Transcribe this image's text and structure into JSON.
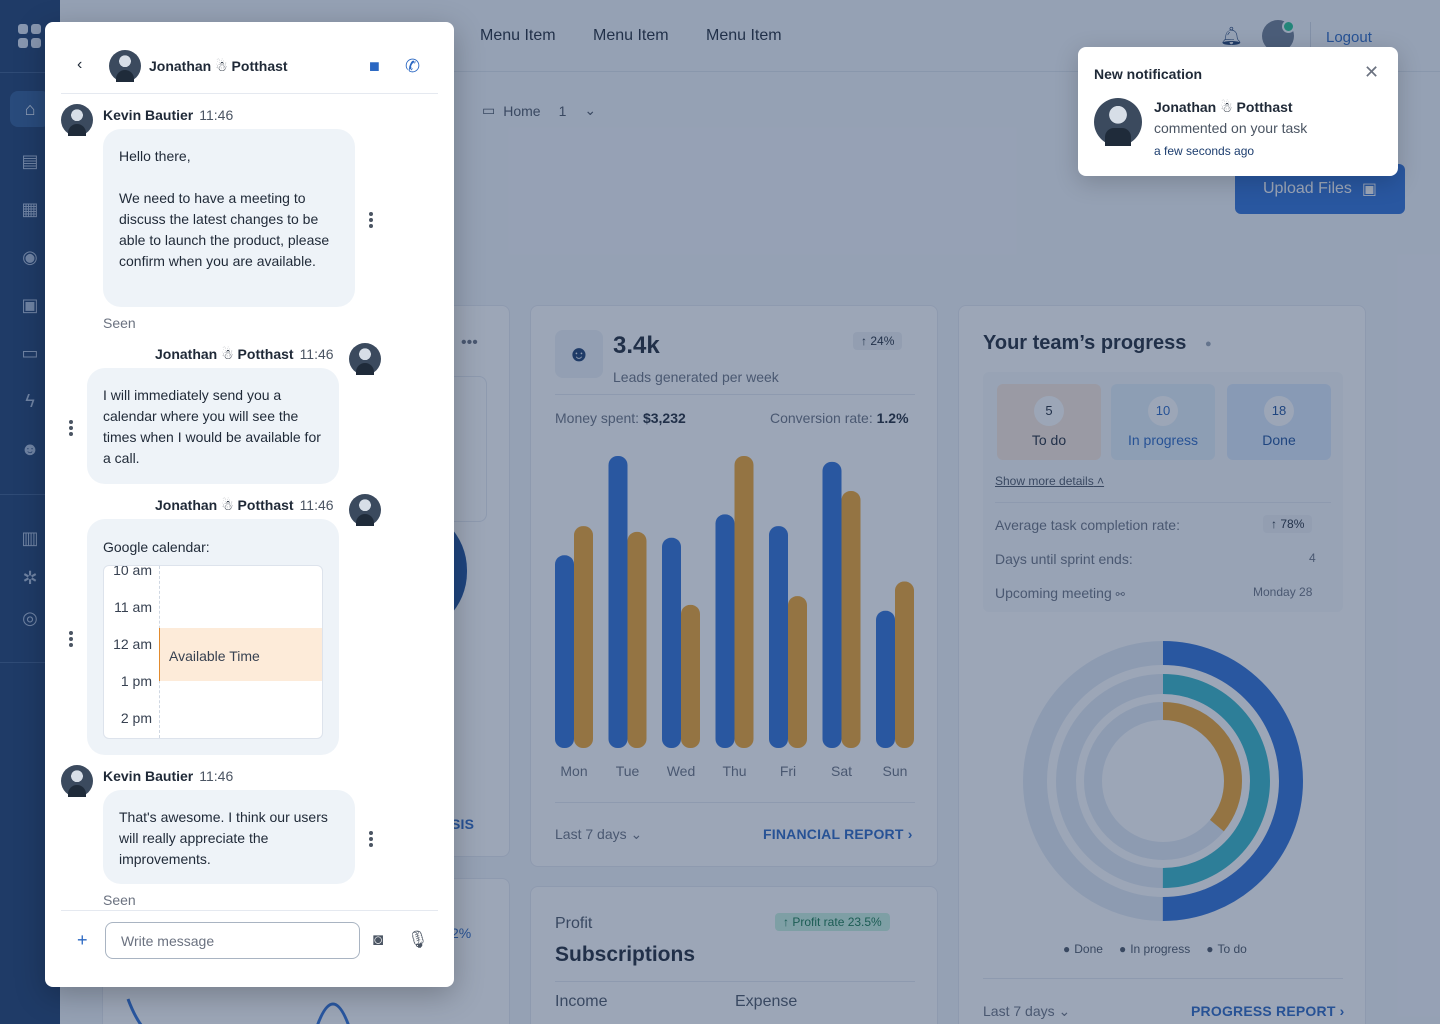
{
  "nav": {
    "menu_items": [
      "Menu Item",
      "Menu Item",
      "Menu Item"
    ],
    "logout": "Logout"
  },
  "breadcrumb": {
    "home": "Home",
    "count": "1"
  },
  "upload": {
    "label": "Upload Files"
  },
  "leads_card": {
    "value": "3.4k",
    "caption": "Leads generated per week",
    "badge": "24%",
    "money_label": "Money spent:",
    "money_value": "$3,232",
    "conversion_label": "Conversion rate:",
    "conversion_value": "1.2%",
    "period": "Last 7 days",
    "report_link": "FINANCIAL REPORT"
  },
  "chart_data": {
    "type": "bar",
    "categories": [
      "Mon",
      "Tue",
      "Wed",
      "Thu",
      "Fri",
      "Sat",
      "Sun"
    ],
    "series": [
      {
        "values": [
          66,
          100,
          72,
          80,
          76,
          98,
          47
        ]
      },
      {
        "values": [
          76,
          74,
          49,
          100,
          52,
          88,
          57
        ]
      }
    ],
    "ylim": [
      0,
      100
    ],
    "colors": [
      "#2f6fd6",
      "#f0a52c"
    ]
  },
  "team_card": {
    "title": "Your team’s progress",
    "tiles": [
      {
        "num": "5",
        "label": "To do"
      },
      {
        "num": "10",
        "label": "In progress"
      },
      {
        "num": "18",
        "label": "Done"
      }
    ],
    "show_more": "Show more details",
    "rows": [
      {
        "label": "Average task completion rate:",
        "value": "78%"
      },
      {
        "label": "Days until sprint ends:",
        "value": "4"
      },
      {
        "label": "Upcoming meeting",
        "value": "Monday 28"
      }
    ],
    "legend": [
      "Done",
      "In progress",
      "To do"
    ],
    "period": "Last 7 days",
    "report_link": "PROGRESS REPORT",
    "donut": {
      "done": 0.5,
      "in_progress": 0.5,
      "to_do": 0.36
    }
  },
  "subs_card": {
    "eyebrow": "Profit",
    "title": "Subscriptions",
    "badge": "Profit rate 23.5%",
    "income_label": "Income",
    "expense_label": "Expense"
  },
  "left_card": {
    "link_tail": "SIS",
    "pct_tail": "2%"
  },
  "chat": {
    "contact_name": "Jonathan ☃ Potthast",
    "messages": [
      {
        "author": "Kevin Bautier",
        "time": "11:46",
        "text": "Hello there,\n\nWe need to have a meeting to discuss the latest changes to be able to launch the product, please confirm when you are available.",
        "status": "Seen"
      },
      {
        "author": "Jonathan ☃ Potthast",
        "time": "11:46",
        "text": "I will immediately send you a calendar where you will see the times when I would be available for a call."
      },
      {
        "author": "Jonathan ☃ Potthast",
        "time": "11:46",
        "calendar_title": "Google calendar:",
        "slots": [
          "10 am",
          "11 am",
          "12 am",
          "1 pm",
          "2 pm"
        ],
        "available": "Available Time"
      },
      {
        "author": "Kevin Bautier",
        "time": "11:46",
        "text": "That's awesome. I think our users will really appreciate the improvements.",
        "status": "Seen"
      }
    ],
    "input_placeholder": "Write message"
  },
  "notification": {
    "title": "New notification",
    "name": "Jonathan ☃ Potthast",
    "text": "commented on your task",
    "time": "a few seconds ago"
  }
}
